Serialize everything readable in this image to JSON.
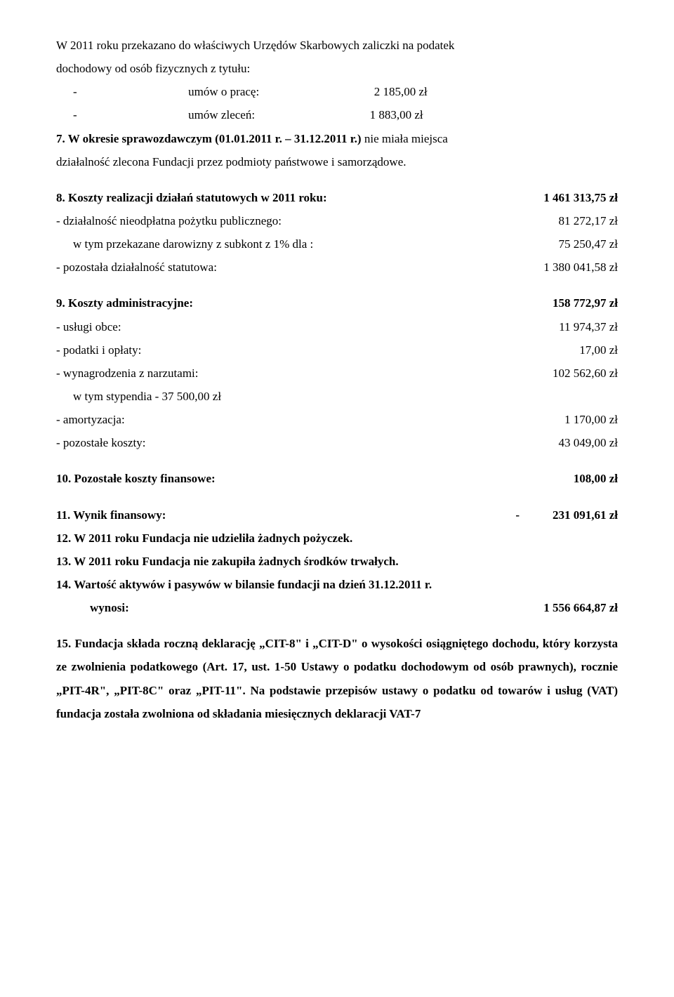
{
  "p1": {
    "l1": "W 2011 roku przekazano do właściwych Urzędów Skarbowych zaliczki na podatek",
    "l2": "dochodowy od osób fizycznych z tytułu:",
    "i1_label": "umów o pracę:",
    "i1_val": "2 185,00 zł",
    "i2_label": "umów zleceń:",
    "i2_val": "1 883,00 zł"
  },
  "p7": {
    "l1a": "7. W okresie sprawozdawczym (01.01.2011 r. – 31.12.2011 r.)",
    "l1b": " nie miała miejsca",
    "l2": "działalność zlecona Fundacji przez podmioty państwowe i samorządowe."
  },
  "p8": {
    "title": "8. Koszty realizacji działań statutowych w 2011 roku:",
    "title_val": "1 461 313,75 zł",
    "i1": "- działalność nieodpłatna pożytku publicznego:",
    "i1_val": "81 272,17 zł",
    "i2": "w tym przekazane darowizny z  subkont z 1% dla :",
    "i2_val": "75 250,47 zł",
    "i3": "- pozostała działalność statutowa:",
    "i3_val": "1 380 041,58 zł"
  },
  "p9": {
    "title": "9. Koszty administracyjne:",
    "title_val": "158 772,97 zł",
    "i1": "- usługi obce:",
    "i1_val": "11 974,37 zł",
    "i2": "- podatki i opłaty:",
    "i2_val": "17,00 zł",
    "i3": "- wynagrodzenia z narzutami:",
    "i3_val": "102 562,60 zł",
    "i4": "w tym stypendia  -  37 500,00 zł",
    "i5": "-  amortyzacja:",
    "i5_val": "1 170,00 zł",
    "i6": "- pozostałe koszty:",
    "i6_val": "43 049,00 zł"
  },
  "p10": {
    "title": "10. Pozostałe koszty finansowe:",
    "val": "108,00 zł"
  },
  "p11": {
    "title": "11. Wynik finansowy:",
    "dash": "-",
    "val": "231 091,61 zł"
  },
  "p12": "12. W 2011 roku Fundacja nie udzieliła żadnych pożyczek.",
  "p13": "13. W 2011 roku Fundacja nie zakupiła żadnych środków trwałych.",
  "p14": {
    "l1": "14.  Wartość aktywów i pasywów w bilansie fundacji na dzień 31.12.2011 r.",
    "l2": "wynosi:",
    "val": "1 556  664,87 zł"
  },
  "p15": {
    "l1a": "15. Fundacja składa  roczną deklarację „CIT-8\" i „CIT-D\" o wysokości osiągniętego",
    "l1b": "dochodu, który korzysta ze zwolnienia podatkowego (Art. 17, ust. 1-50 Ustawy o podatku dochodowym od osób prawnych), rocznie „PIT-4R\", „PIT-8C\" oraz „PIT-11\". Na podstawie przepisów ustawy o podatku od towarów i usług (VAT) fundacja została zwolniona od składania miesięcznych deklaracji  VAT-7"
  }
}
